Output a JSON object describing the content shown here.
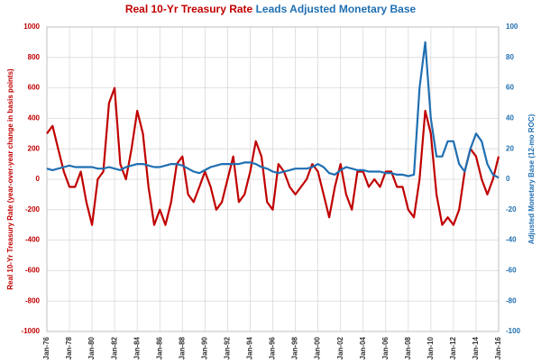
{
  "chart_data": {
    "type": "line",
    "title": [
      "Real 10-Yr Treasury Rate",
      "Leads Adjusted Monetary Base"
    ],
    "ylabel": "Real 10-Yr Treasury Rate (year-over-year change in basis points)",
    "y2label": "Adjusted Monetary Base (12-mo ROC)",
    "categories": [
      "Jan-76",
      null,
      null,
      null,
      "Jan-78",
      null,
      null,
      null,
      "Jan-80",
      null,
      null,
      null,
      "Jan-82",
      null,
      null,
      null,
      "Jan-84",
      null,
      null,
      null,
      "Jan-86",
      null,
      null,
      null,
      "Jan-88",
      null,
      null,
      null,
      "Jan-90",
      null,
      null,
      null,
      "Jan-92",
      null,
      null,
      null,
      "Jan-94",
      null,
      null,
      null,
      "Jan-96",
      null,
      null,
      null,
      "Jan-98",
      null,
      null,
      null,
      "Jan-00",
      null,
      null,
      null,
      "Jan-02",
      null,
      null,
      null,
      "Jan-04",
      null,
      null,
      null,
      "Jan-06",
      null,
      null,
      null,
      "Jan-08",
      null,
      null,
      null,
      "Jan-10",
      null,
      null,
      null,
      "Jan-12",
      null,
      null,
      null,
      "Jan-14",
      null,
      null,
      null,
      "Jan-16"
    ],
    "series": [
      {
        "color": "#c00000",
        "values": [
          300,
          350,
          200,
          50,
          -50,
          -50,
          50,
          -150,
          -300,
          0,
          50,
          500,
          600,
          100,
          0,
          200,
          450,
          300,
          -50,
          -300,
          -200,
          -300,
          -150,
          100,
          150,
          -100,
          -150,
          -50,
          50,
          -50,
          -200,
          -150,
          0,
          150,
          -150,
          -100,
          50,
          250,
          150,
          -150,
          -200,
          100,
          50,
          -50,
          -100,
          -50,
          0,
          100,
          50,
          -100,
          -250,
          -50,
          100,
          -100,
          -200,
          50,
          50,
          -50,
          0,
          -50,
          50,
          50,
          -50,
          -50,
          -200,
          -250,
          0,
          450,
          300,
          -100,
          -300,
          -250,
          -300,
          -200,
          50,
          200,
          150,
          0,
          -100,
          0,
          150
        ]
      },
      {
        "color": "#1f6fb2",
        "axis": "y2",
        "values": [
          7,
          6,
          7,
          8,
          9,
          8,
          8,
          8,
          8,
          7,
          7,
          8,
          7,
          6,
          8,
          9,
          10,
          10,
          9,
          8,
          8,
          9,
          10,
          10,
          9,
          7,
          5,
          4,
          6,
          8,
          9,
          10,
          10,
          10,
          10,
          11,
          11,
          10,
          8,
          7,
          5,
          4,
          5,
          6,
          7,
          7,
          7,
          8,
          10,
          8,
          4,
          3,
          6,
          8,
          7,
          6,
          6,
          5,
          5,
          5,
          4,
          4,
          3,
          3,
          2,
          3,
          60,
          90,
          40,
          15,
          15,
          25,
          25,
          10,
          5,
          20,
          30,
          25,
          10,
          3,
          1
        ]
      }
    ],
    "ylim": [
      -1000,
      1000
    ],
    "yticks": [
      -1000,
      -800,
      -600,
      -400,
      -200,
      0,
      200,
      400,
      600,
      800,
      1000
    ],
    "y2lim": [
      -100,
      100
    ],
    "y2ticks": [
      -100,
      -80,
      -60,
      -40,
      -20,
      0,
      20,
      40,
      60,
      80,
      100
    ],
    "grid": true
  }
}
